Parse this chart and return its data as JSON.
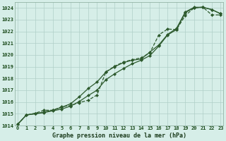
{
  "title": "Graphe pression niveau de la mer (hPa)",
  "background_color": "#d6eee8",
  "grid_color": "#b0cfc8",
  "line_color": "#2d5a2d",
  "x_labels": [
    "0",
    "1",
    "2",
    "3",
    "4",
    "5",
    "6",
    "7",
    "8",
    "9",
    "10",
    "11",
    "12",
    "13",
    "14",
    "15",
    "16",
    "17",
    "18",
    "19",
    "20",
    "21",
    "22",
    "23"
  ],
  "ylim": [
    1014.0,
    1024.5
  ],
  "xlim": [
    -0.3,
    23.3
  ],
  "yticks": [
    1014,
    1015,
    1016,
    1017,
    1018,
    1019,
    1020,
    1021,
    1022,
    1023,
    1024
  ],
  "series1": [
    1014.1,
    1014.9,
    1015.0,
    1015.1,
    1015.25,
    1015.4,
    1015.65,
    1016.05,
    1016.55,
    1017.0,
    1017.9,
    1018.4,
    1018.85,
    1019.25,
    1019.55,
    1019.95,
    1020.75,
    1021.7,
    1022.15,
    1023.6,
    1024.0,
    1024.05,
    1023.85,
    1023.5
  ],
  "series2": [
    1014.1,
    1014.9,
    1015.0,
    1015.15,
    1015.3,
    1015.55,
    1015.85,
    1016.45,
    1017.15,
    1017.7,
    1018.55,
    1019.0,
    1019.35,
    1019.55,
    1019.65,
    1020.25,
    1020.85,
    1021.75,
    1022.25,
    1023.65,
    1024.05,
    1024.05,
    1023.85,
    1023.5
  ],
  "series3": [
    1014.1,
    1014.9,
    1015.05,
    1015.3,
    1015.3,
    1015.6,
    1015.7,
    1015.95,
    1016.15,
    1016.6,
    1018.55,
    1019.05,
    1019.4,
    1019.6,
    1019.75,
    1020.2,
    1021.7,
    1022.2,
    1022.15,
    1023.35,
    1024.0,
    1024.05,
    1023.4,
    1023.4
  ]
}
